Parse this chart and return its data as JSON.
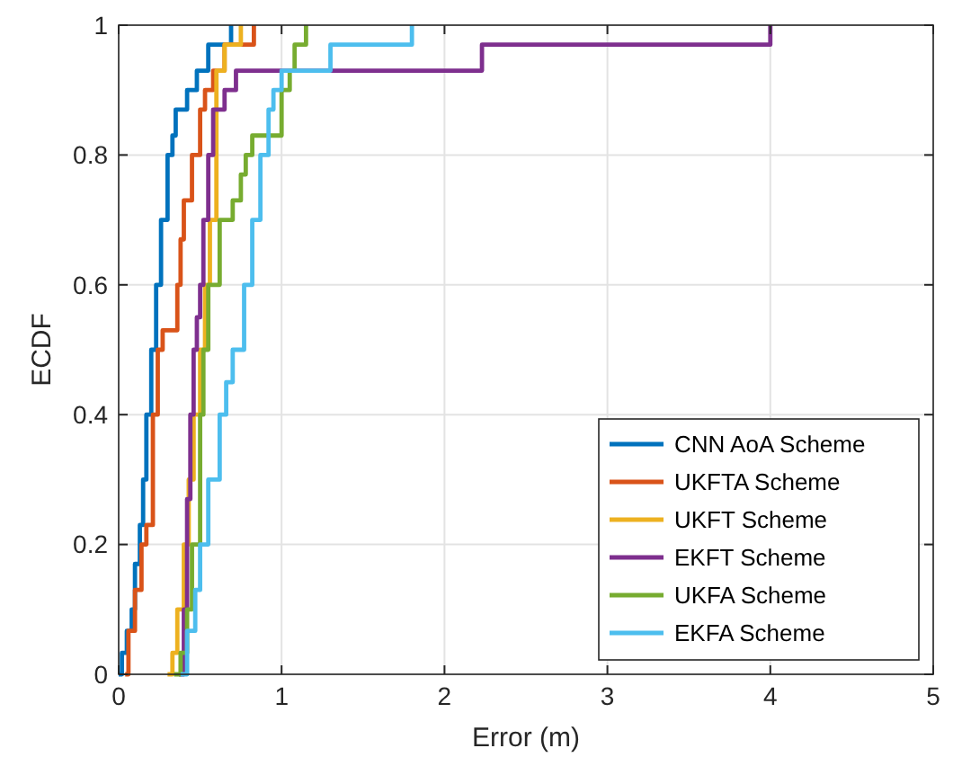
{
  "chart_data": {
    "type": "step",
    "xlabel": "Error (m)",
    "ylabel": "ECDF",
    "xlim": [
      0,
      5
    ],
    "xticks": [
      0,
      1,
      2,
      3,
      4,
      5
    ],
    "ylim": [
      0,
      1
    ],
    "yticks": [
      0,
      0.2,
      0.4,
      0.6,
      0.8,
      1
    ],
    "grid": true,
    "legend": "bottom right",
    "line_style": "solid",
    "marker": "none",
    "series": [
      {
        "name": "CNN AoA Scheme",
        "color": "#0072bd",
        "x": [
          0,
          0.02,
          0.05,
          0.08,
          0.1,
          0.13,
          0.15,
          0.17,
          0.2,
          0.23,
          0.26,
          0.3,
          0.33,
          0.35,
          0.42,
          0.48,
          0.55,
          0.69
        ],
        "values": [
          0,
          0.033,
          0.067,
          0.1,
          0.17,
          0.23,
          0.3,
          0.4,
          0.5,
          0.6,
          0.7,
          0.8,
          0.83,
          0.87,
          0.9,
          0.93,
          0.97,
          1
        ]
      },
      {
        "name": "UKFTA Scheme",
        "color": "#d95319",
        "x": [
          0.04,
          0.06,
          0.1,
          0.14,
          0.17,
          0.21,
          0.24,
          0.27,
          0.36,
          0.38,
          0.4,
          0.45,
          0.5,
          0.53,
          0.58,
          0.65,
          0.83
        ],
        "values": [
          0,
          0.067,
          0.13,
          0.2,
          0.23,
          0.4,
          0.5,
          0.53,
          0.6,
          0.67,
          0.73,
          0.8,
          0.87,
          0.9,
          0.93,
          0.97,
          1
        ]
      },
      {
        "name": "UKFT Scheme",
        "color": "#edb120",
        "x": [
          0.3,
          0.33,
          0.36,
          0.4,
          0.43,
          0.46,
          0.5,
          0.53,
          0.56,
          0.6,
          0.65,
          0.75
        ],
        "values": [
          0,
          0.033,
          0.1,
          0.2,
          0.3,
          0.4,
          0.5,
          0.6,
          0.7,
          0.93,
          0.97,
          1
        ]
      },
      {
        "name": "EKFT Scheme",
        "color": "#7e2f8e",
        "x": [
          0.37,
          0.4,
          0.42,
          0.44,
          0.46,
          0.48,
          0.5,
          0.52,
          0.55,
          0.58,
          0.65,
          0.72,
          2.23,
          4
        ],
        "values": [
          0,
          0.1,
          0.27,
          0.4,
          0.5,
          0.55,
          0.6,
          0.7,
          0.8,
          0.87,
          0.9,
          0.93,
          0.97,
          1
        ]
      },
      {
        "name": "UKFA Scheme",
        "color": "#77ac30",
        "x": [
          0.34,
          0.38,
          0.42,
          0.45,
          0.5,
          0.52,
          0.55,
          0.62,
          0.7,
          0.75,
          0.78,
          0.82,
          1.0,
          1.05,
          1.08,
          1.15
        ],
        "values": [
          0,
          0.033,
          0.1,
          0.2,
          0.4,
          0.5,
          0.6,
          0.7,
          0.73,
          0.77,
          0.8,
          0.83,
          0.9,
          0.93,
          0.97,
          1
        ]
      },
      {
        "name": "EKFA Scheme",
        "color": "#4dbeee",
        "x": [
          0.38,
          0.42,
          0.47,
          0.5,
          0.55,
          0.62,
          0.66,
          0.7,
          0.77,
          0.82,
          0.87,
          0.92,
          0.95,
          1.0,
          1.3,
          1.8
        ],
        "values": [
          0,
          0.067,
          0.13,
          0.2,
          0.3,
          0.4,
          0.45,
          0.5,
          0.6,
          0.7,
          0.8,
          0.87,
          0.9,
          0.93,
          0.97,
          1
        ]
      }
    ]
  }
}
